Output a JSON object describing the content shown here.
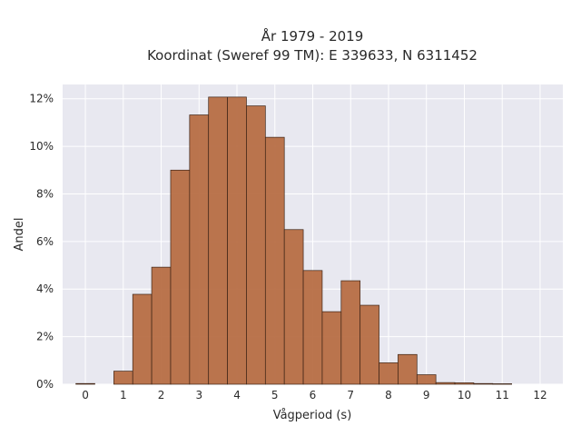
{
  "chart_data": {
    "type": "bar",
    "title": "År 1979 - 2019",
    "subtitle": "Koordinat (Sweref 99 TM): E 339633, N 6311452",
    "xlabel": "Vågperiod (s)",
    "ylabel": "Andel",
    "xlim": [
      -0.6,
      12.6
    ],
    "ylim": [
      0,
      12.6
    ],
    "x_ticks": [
      0,
      1,
      2,
      3,
      4,
      5,
      6,
      7,
      8,
      9,
      10,
      11,
      12
    ],
    "y_ticks": [
      0,
      2,
      4,
      6,
      8,
      10,
      12
    ],
    "y_tick_labels": [
      "0%",
      "2%",
      "4%",
      "6%",
      "8%",
      "10%",
      "12%"
    ],
    "grid": true,
    "bar_color": "#b5693f",
    "bin_width": 0.5,
    "bins": [
      {
        "x": 0.0,
        "value": 0.03
      },
      {
        "x": 1.0,
        "value": 0.55
      },
      {
        "x": 1.5,
        "value": 3.78
      },
      {
        "x": 2.0,
        "value": 4.92
      },
      {
        "x": 2.5,
        "value": 9.0
      },
      {
        "x": 3.0,
        "value": 11.32
      },
      {
        "x": 3.5,
        "value": 12.07
      },
      {
        "x": 4.0,
        "value": 12.07
      },
      {
        "x": 4.5,
        "value": 11.7
      },
      {
        "x": 5.0,
        "value": 10.38
      },
      {
        "x": 5.5,
        "value": 6.5
      },
      {
        "x": 6.0,
        "value": 4.78
      },
      {
        "x": 6.5,
        "value": 3.05
      },
      {
        "x": 7.0,
        "value": 4.35
      },
      {
        "x": 7.5,
        "value": 3.32
      },
      {
        "x": 8.0,
        "value": 0.9
      },
      {
        "x": 8.5,
        "value": 1.25
      },
      {
        "x": 9.0,
        "value": 0.4
      },
      {
        "x": 9.5,
        "value": 0.07
      },
      {
        "x": 10.0,
        "value": 0.06
      },
      {
        "x": 10.5,
        "value": 0.03
      },
      {
        "x": 11.0,
        "value": 0.02
      }
    ]
  }
}
